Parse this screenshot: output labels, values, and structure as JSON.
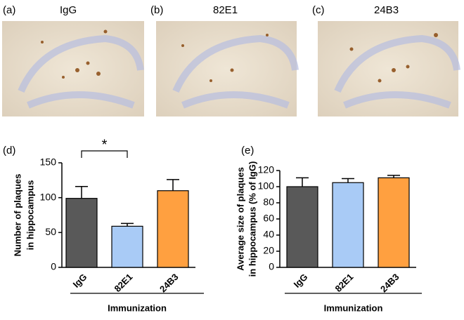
{
  "images": [
    {
      "label": "(a)",
      "title": "IgG"
    },
    {
      "label": "(b)",
      "title": "82E1"
    },
    {
      "label": "(c)",
      "title": "24B3"
    }
  ],
  "chart_data": [
    {
      "type": "bar",
      "label": "(d)",
      "ylabel": [
        "Number of plaques",
        "in hippocampus"
      ],
      "xlabel": "Immunization",
      "categories": [
        "IgG",
        "82E1",
        "24B3"
      ],
      "values": [
        99,
        59,
        110
      ],
      "errors": [
        17,
        4,
        16
      ],
      "colors": [
        "#595959",
        "#a9cbf6",
        "#ffa040"
      ],
      "ylim": [
        0,
        150
      ],
      "yticks": [
        0,
        50,
        100,
        150
      ],
      "significance": {
        "label": "*",
        "pair": [
          "IgG",
          "82E1"
        ]
      }
    },
    {
      "type": "bar",
      "label": "(e)",
      "ylabel": [
        "Average size of plaques",
        "in hippocampus (% of IgG)"
      ],
      "xlabel": "Immunization",
      "categories": [
        "IgG",
        "82E1",
        "24B3"
      ],
      "values": [
        100,
        105,
        111
      ],
      "errors": [
        11,
        5,
        3
      ],
      "colors": [
        "#595959",
        "#a9cbf6",
        "#ffa040"
      ],
      "ylim": [
        0,
        120
      ],
      "yticks": [
        0,
        20,
        40,
        60,
        80,
        100,
        120
      ]
    }
  ]
}
